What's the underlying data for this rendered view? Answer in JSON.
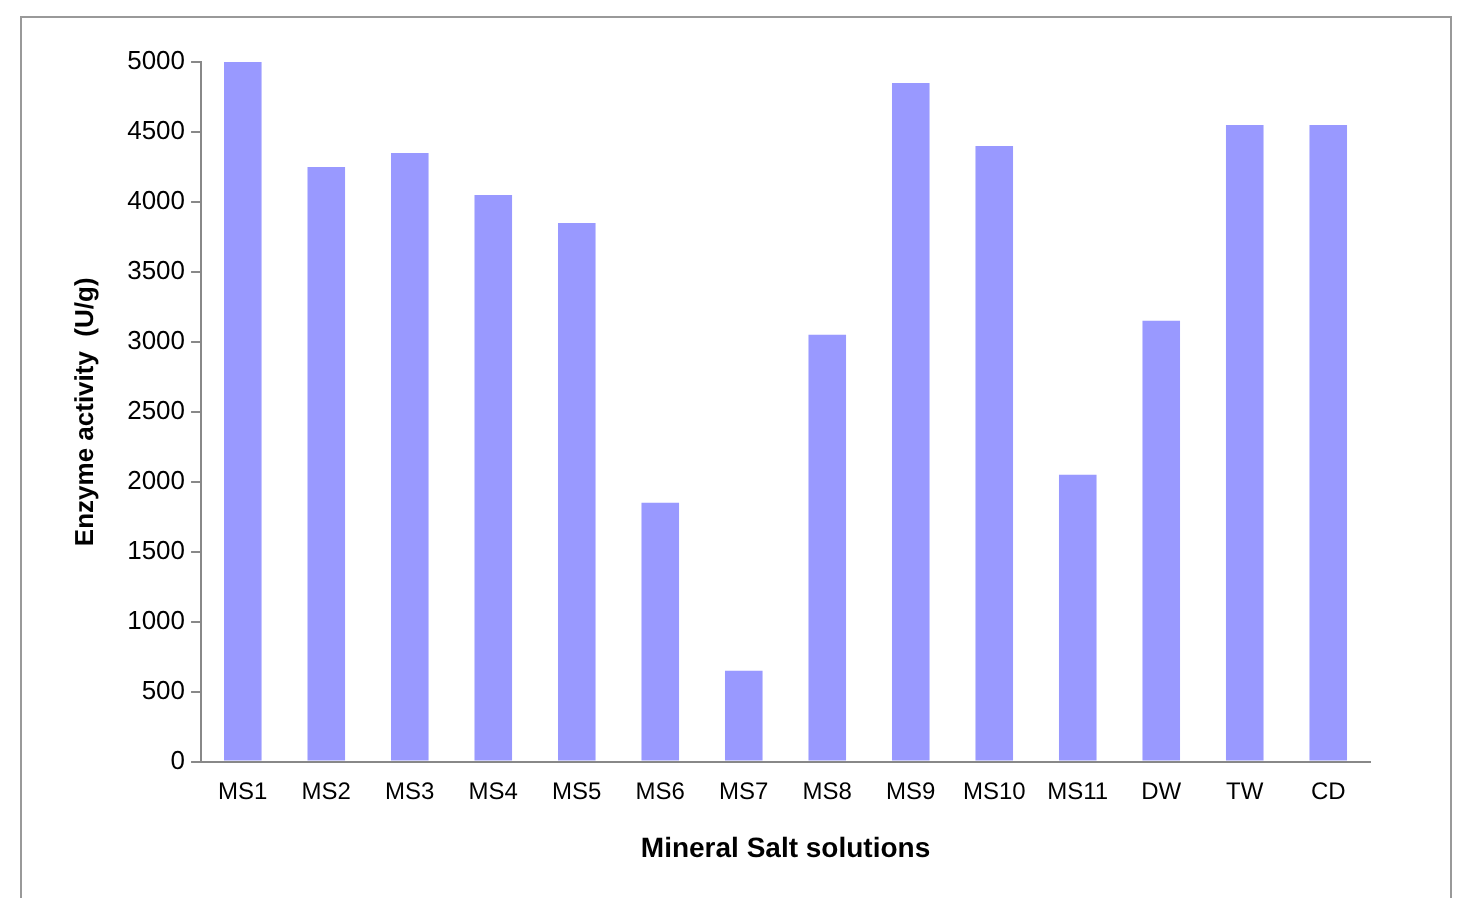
{
  "chart_data": {
    "type": "bar",
    "xlabel": "Mineral Salt solutions",
    "ylabel": "Enzyme activity  (U/g)",
    "categories": [
      "MS1",
      "MS2",
      "MS3",
      "MS4",
      "MS5",
      "MS6",
      "MS7",
      "MS8",
      "MS9",
      "MS10",
      "MS11",
      "DW",
      "TW",
      "CD"
    ],
    "values": [
      5000,
      4250,
      4350,
      4050,
      3850,
      1850,
      650,
      3050,
      4850,
      4400,
      2050,
      3150,
      4550,
      4550
    ],
    "color": "#9999ff",
    "ylim": [
      0,
      5000
    ],
    "yticks": [
      0,
      500,
      1000,
      1500,
      2000,
      2500,
      3000,
      3500,
      4000,
      4500,
      5000
    ],
    "grid": false,
    "legend": false
  }
}
